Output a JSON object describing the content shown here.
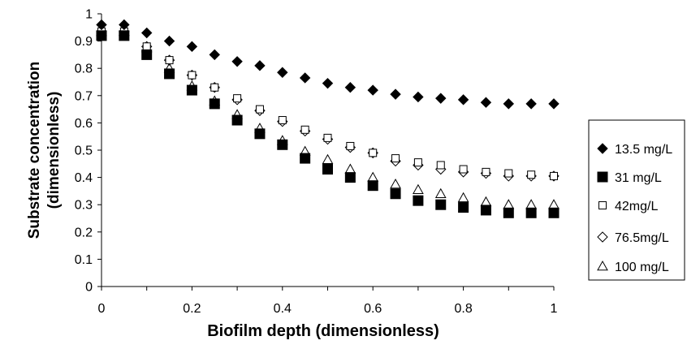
{
  "chart_data": {
    "type": "scatter",
    "xlabel": "Biofilm depth (dimensionless)",
    "ylabel_lines": [
      "Substrate concentration",
      "(dimensionless)"
    ],
    "xlim": [
      0,
      1
    ],
    "ylim": [
      0,
      1
    ],
    "x_ticks": [
      0,
      0.2,
      0.4,
      0.6,
      0.8,
      1
    ],
    "y_ticks": [
      0,
      0.1,
      0.2,
      0.3,
      0.4,
      0.5,
      0.6,
      0.7,
      0.8,
      0.9,
      1
    ],
    "x_tick_labels": [
      "0",
      "0.2",
      "0.4",
      "0.6",
      "0.8",
      "1"
    ],
    "y_tick_labels": [
      "0",
      "0.1",
      "0.2",
      "0.3",
      "0.4",
      "0.5",
      "0.6",
      "0.7",
      "0.8",
      "0.9",
      "1"
    ],
    "grid": false,
    "legend_position": "right",
    "x": [
      0,
      0.05,
      0.1,
      0.15,
      0.2,
      0.25,
      0.3,
      0.35,
      0.4,
      0.45,
      0.5,
      0.55,
      0.6,
      0.65,
      0.7,
      0.75,
      0.8,
      0.85,
      0.9,
      0.95,
      1
    ],
    "series": [
      {
        "name": "13.5 mg/L",
        "marker": "diamond-filled",
        "color": "#000000",
        "values": [
          0.96,
          0.96,
          0.93,
          0.9,
          0.88,
          0.85,
          0.825,
          0.81,
          0.785,
          0.765,
          0.745,
          0.73,
          0.72,
          0.705,
          0.695,
          0.69,
          0.685,
          0.675,
          0.67,
          0.67,
          0.67
        ]
      },
      {
        "name": "31 mg/L",
        "marker": "square-filled",
        "color": "#000000",
        "values": [
          0.92,
          0.92,
          0.85,
          0.78,
          0.72,
          0.67,
          0.61,
          0.56,
          0.52,
          0.47,
          0.43,
          0.4,
          0.37,
          0.34,
          0.315,
          0.3,
          0.29,
          0.28,
          0.27,
          0.27,
          0.27
        ]
      },
      {
        "name": "42mg/L",
        "marker": "square-open",
        "color": "#000000",
        "values": [
          0.935,
          0.935,
          0.88,
          0.83,
          0.775,
          0.73,
          0.69,
          0.65,
          0.61,
          0.575,
          0.545,
          0.515,
          0.49,
          0.47,
          0.455,
          0.445,
          0.43,
          0.42,
          0.415,
          0.41,
          0.405
        ]
      },
      {
        "name": "76.5mg/L",
        "marker": "diamond-open",
        "color": "#000000",
        "values": [
          0.935,
          0.935,
          0.88,
          0.83,
          0.775,
          0.73,
          0.685,
          0.645,
          0.605,
          0.57,
          0.54,
          0.51,
          0.49,
          0.46,
          0.445,
          0.43,
          0.42,
          0.415,
          0.405,
          0.405,
          0.405
        ]
      },
      {
        "name": "100 mg/L",
        "marker": "triangle-open",
        "color": "#000000",
        "values": [
          0.935,
          0.935,
          0.875,
          0.8,
          0.735,
          0.68,
          0.63,
          0.58,
          0.535,
          0.495,
          0.465,
          0.43,
          0.4,
          0.375,
          0.355,
          0.34,
          0.325,
          0.31,
          0.3,
          0.3,
          0.3
        ]
      }
    ]
  }
}
